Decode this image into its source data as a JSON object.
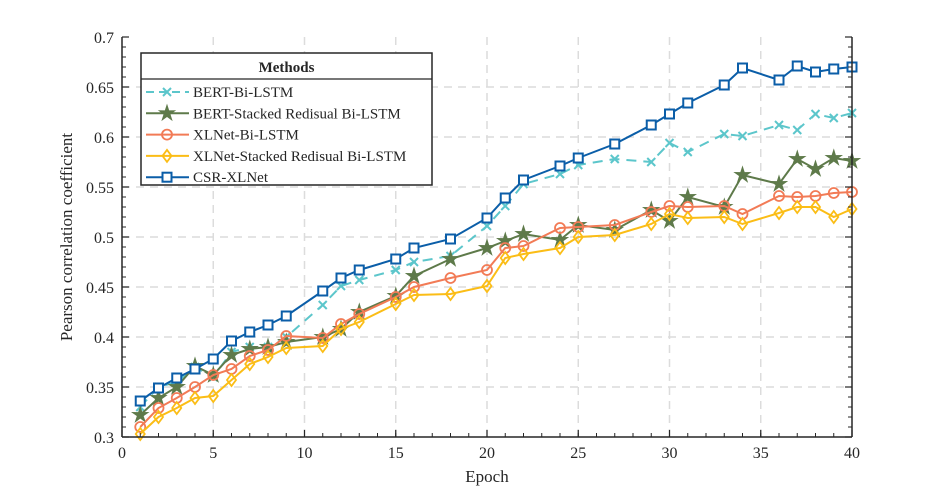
{
  "chart_data": {
    "type": "line",
    "title": "",
    "xlabel": "Epoch",
    "ylabel": "Pearson correlation coefficient",
    "xlim": [
      0,
      40
    ],
    "ylim": [
      0.3,
      0.7
    ],
    "xticks": [
      "0",
      "5",
      "10",
      "15",
      "20",
      "25",
      "30",
      "35",
      "40"
    ],
    "yticks": [
      "0.3",
      "0.35",
      "0.4",
      "0.45",
      "0.5",
      "0.55",
      "0.6",
      "0.65",
      "0.7"
    ],
    "grid": true,
    "legend": {
      "title": "Methods",
      "position": "top-left"
    },
    "x": [
      1,
      2,
      3,
      4,
      5,
      6,
      7,
      8,
      9,
      11,
      12,
      13,
      15,
      16,
      18,
      20,
      21,
      22,
      24,
      25,
      27,
      29,
      30,
      31,
      33,
      34,
      36,
      37,
      38,
      39,
      40
    ],
    "series": [
      {
        "name": "BERT-Bi-LSTM",
        "color": "#5cc6cb",
        "marker": "x",
        "dashed": true,
        "values": [
          0.33,
          0.35,
          0.355,
          0.37,
          0.36,
          0.385,
          0.39,
          0.39,
          0.4,
          0.432,
          0.451,
          0.457,
          0.467,
          0.475,
          0.481,
          0.511,
          0.531,
          0.553,
          0.563,
          0.572,
          0.578,
          0.575,
          0.594,
          0.585,
          0.603,
          0.601,
          0.612,
          0.607,
          0.623,
          0.619,
          0.624
        ]
      },
      {
        "name": "BERT-Stacked Redisual Bi-LSTM",
        "color": "#5e7a4a",
        "marker": "star",
        "dashed": false,
        "values": [
          0.322,
          0.339,
          0.35,
          0.371,
          0.362,
          0.382,
          0.388,
          0.39,
          0.395,
          0.4,
          0.408,
          0.425,
          0.441,
          0.461,
          0.478,
          0.489,
          0.496,
          0.503,
          0.497,
          0.512,
          0.507,
          0.527,
          0.516,
          0.54,
          0.53,
          0.562,
          0.553,
          0.578,
          0.568,
          0.579,
          0.576
        ]
      },
      {
        "name": "XLNet-Bi-LSTM",
        "color": "#f27b56",
        "marker": "circle",
        "dashed": false,
        "values": [
          0.31,
          0.329,
          0.339,
          0.35,
          0.362,
          0.368,
          0.381,
          0.387,
          0.401,
          0.399,
          0.413,
          0.423,
          0.44,
          0.45,
          0.459,
          0.467,
          0.489,
          0.491,
          0.509,
          0.51,
          0.512,
          0.525,
          0.531,
          0.53,
          0.531,
          0.523,
          0.541,
          0.54,
          0.541,
          0.544,
          0.545
        ]
      },
      {
        "name": "XLNet-Stacked Redisual Bi-LSTM",
        "color": "#fbbd16",
        "marker": "diamond",
        "dashed": false,
        "values": [
          0.303,
          0.32,
          0.329,
          0.339,
          0.341,
          0.357,
          0.373,
          0.38,
          0.389,
          0.391,
          0.408,
          0.415,
          0.433,
          0.442,
          0.443,
          0.451,
          0.479,
          0.483,
          0.489,
          0.5,
          0.502,
          0.513,
          0.523,
          0.519,
          0.52,
          0.513,
          0.524,
          0.53,
          0.53,
          0.52,
          0.528
        ]
      },
      {
        "name": "CSR-XLNet",
        "color": "#0b5ea8",
        "marker": "square",
        "dashed": false,
        "values": [
          0.336,
          0.349,
          0.359,
          0.368,
          0.378,
          0.396,
          0.405,
          0.412,
          0.421,
          0.446,
          0.459,
          0.467,
          0.478,
          0.489,
          0.498,
          0.519,
          0.539,
          0.557,
          0.571,
          0.579,
          0.593,
          0.612,
          0.623,
          0.634,
          0.652,
          0.669,
          0.657,
          0.671,
          0.665,
          0.668,
          0.67
        ]
      }
    ]
  }
}
